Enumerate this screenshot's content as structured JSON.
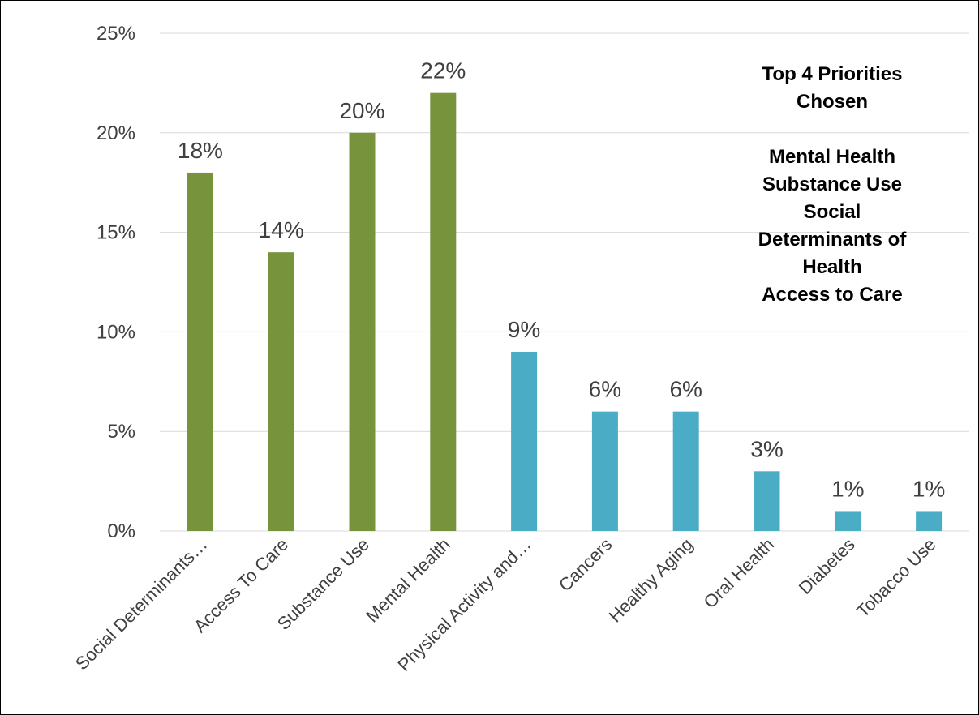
{
  "chart_data": {
    "type": "bar",
    "title": "",
    "xlabel": "",
    "ylabel": "",
    "categories": [
      "Social Determinants…",
      "Access To Care",
      "Substance Use",
      "Mental Health",
      "Physical Activity and…",
      "Cancers",
      "Healthy Aging",
      "Oral Health",
      "Diabetes",
      "Tobacco Use"
    ],
    "values": [
      18,
      14,
      20,
      22,
      9,
      6,
      6,
      3,
      1,
      1
    ],
    "value_labels": [
      "18%",
      "14%",
      "20%",
      "22%",
      "9%",
      "6%",
      "6%",
      "3%",
      "1%",
      "1%"
    ],
    "bar_colors": [
      "#77933c",
      "#77933c",
      "#77933c",
      "#77933c",
      "#4bacc6",
      "#4bacc6",
      "#4bacc6",
      "#4bacc6",
      "#4bacc6",
      "#4bacc6"
    ],
    "ylim": [
      0,
      25
    ],
    "yticks": [
      0,
      5,
      10,
      15,
      20,
      25
    ],
    "ytick_labels": [
      "0%",
      "5%",
      "10%",
      "15%",
      "20%",
      "25%"
    ],
    "grid": true,
    "legend": "none"
  },
  "annotation": {
    "heading_lines": [
      "Top 4 Priorities",
      "Chosen"
    ],
    "priority_lines": [
      "Mental Health",
      "Substance Use",
      "Social",
      "Determinants of",
      "Health",
      "Access to Care"
    ]
  }
}
